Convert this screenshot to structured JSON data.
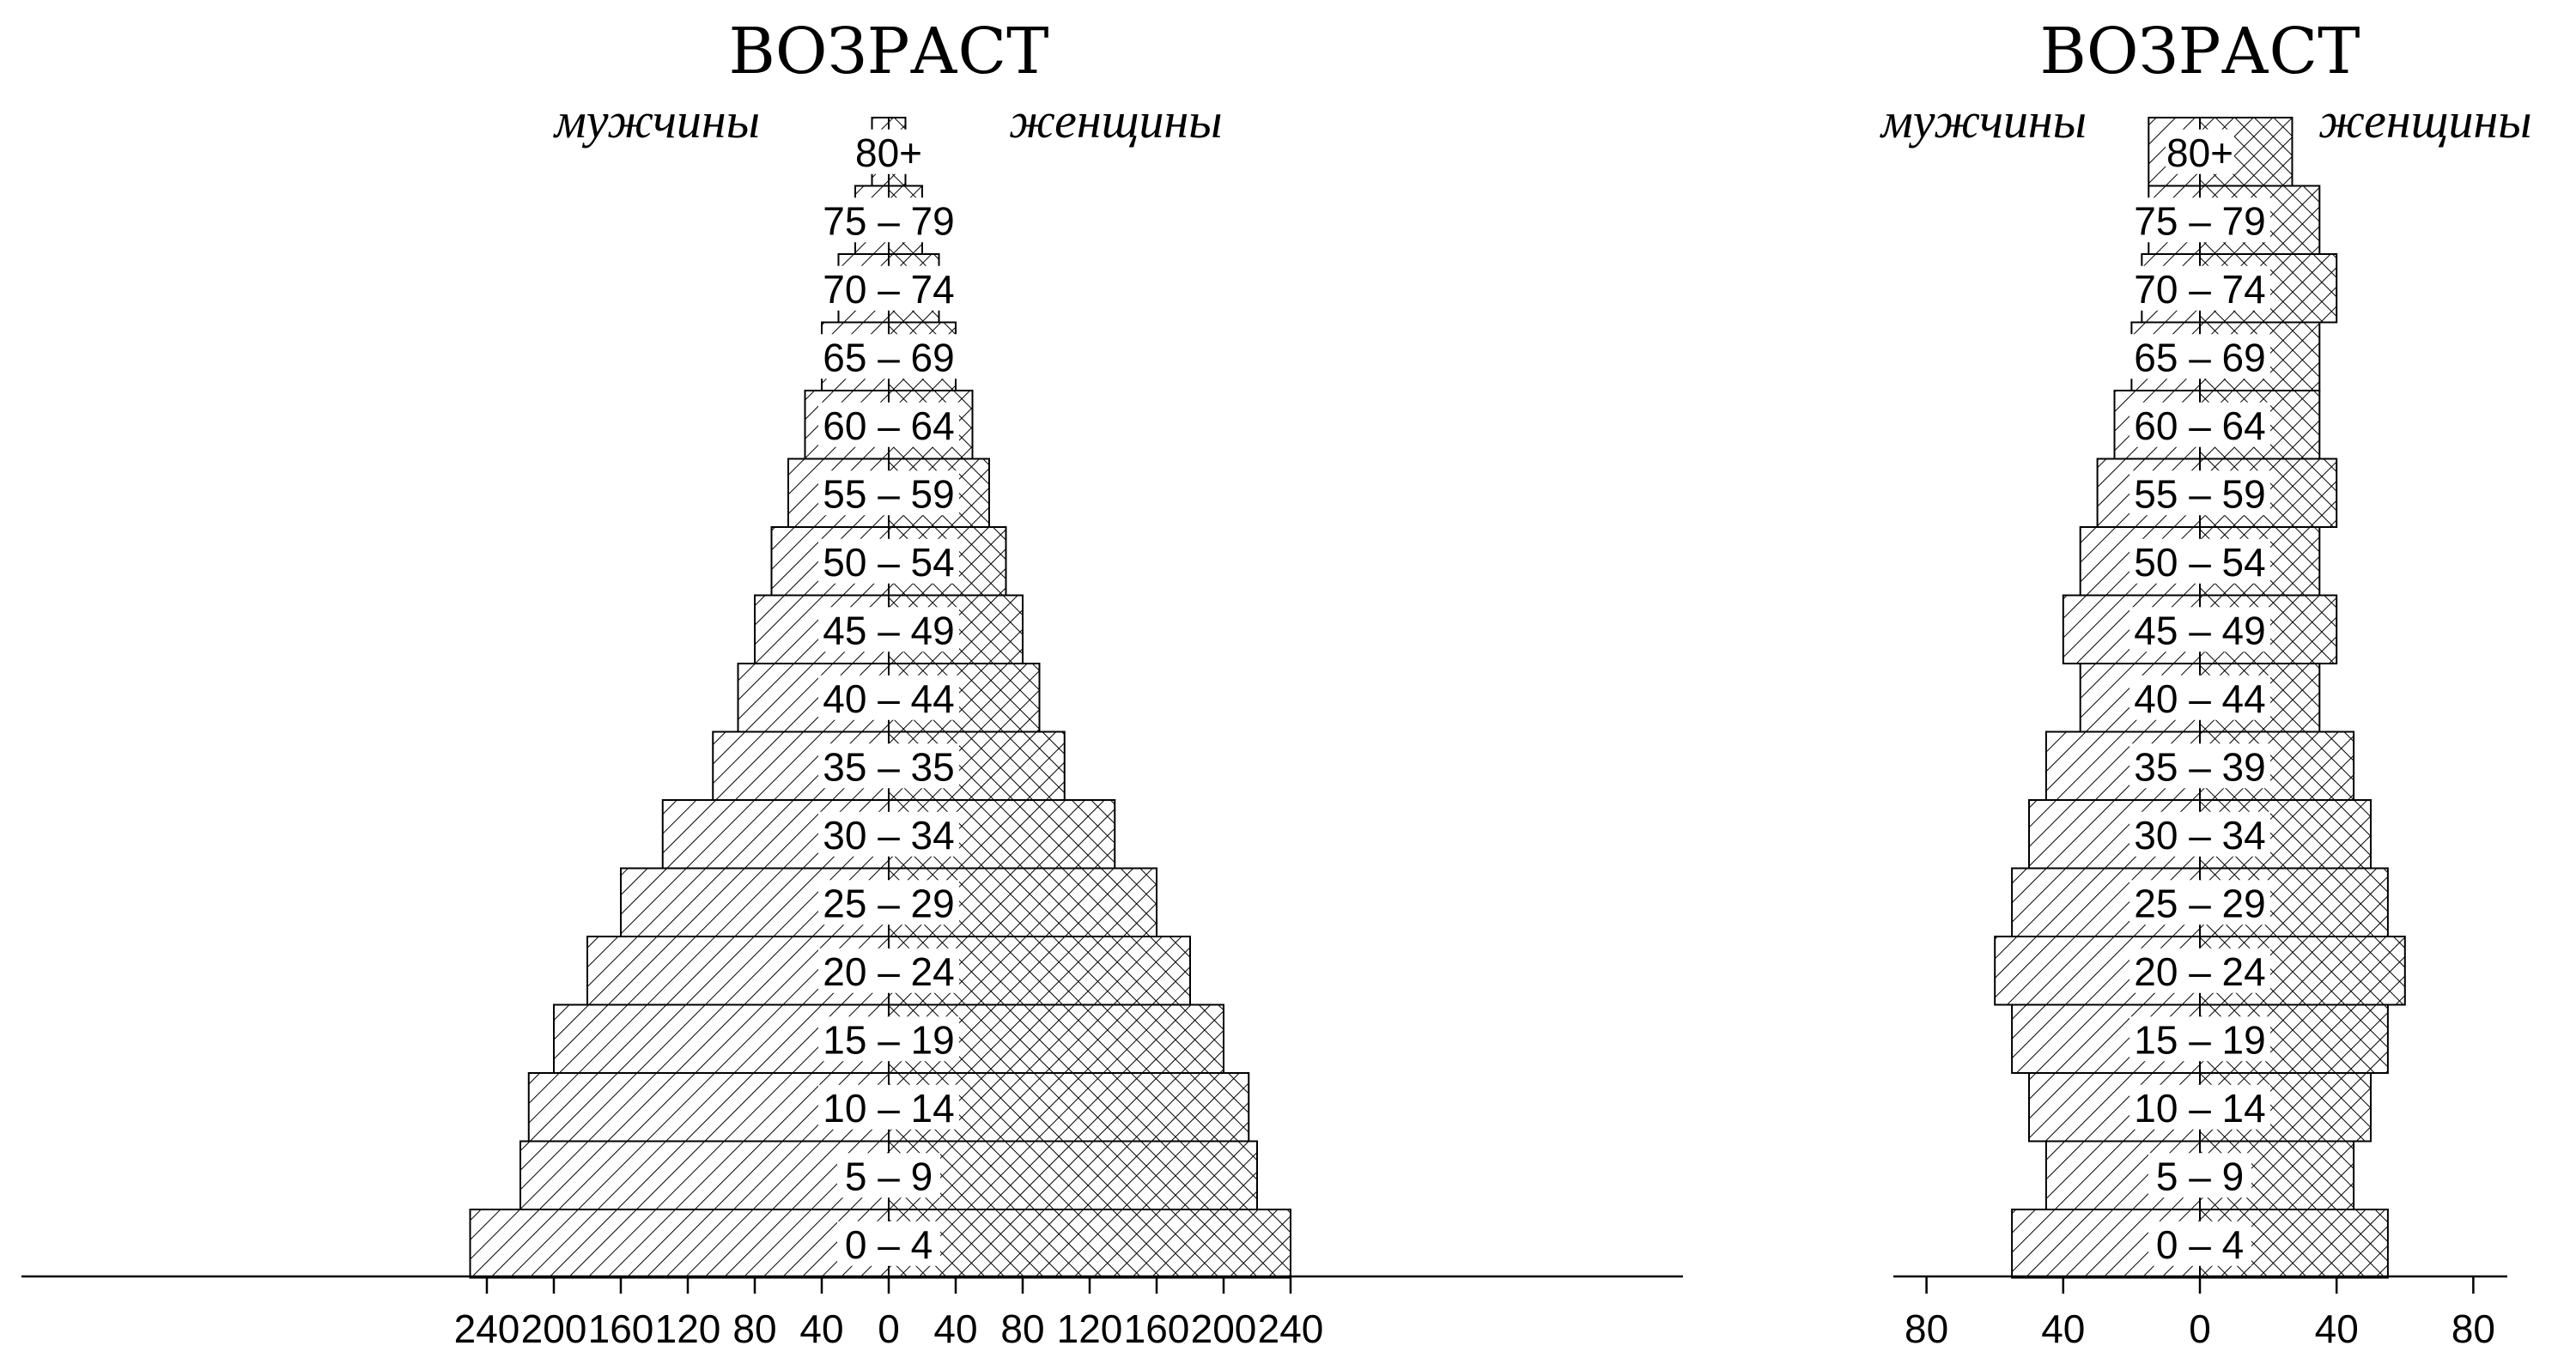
{
  "chart_data": [
    {
      "type": "bar",
      "title": "ВОЗРАСТ",
      "male_label": "мужчины",
      "female_label": "женщины",
      "categories": [
        "0 – 4",
        "5 – 9",
        "10 – 14",
        "15 – 19",
        "20 – 24",
        "25 – 29",
        "30 – 34",
        "35 – 35",
        "40 – 44",
        "45 – 49",
        "50 – 54",
        "55 – 59",
        "60 – 64",
        "65 – 69",
        "70 – 74",
        "75 – 79",
        "80+"
      ],
      "series": [
        {
          "name": "мужчины",
          "values": [
            250,
            220,
            215,
            200,
            180,
            160,
            135,
            105,
            90,
            80,
            70,
            60,
            50,
            40,
            30,
            20,
            10
          ]
        },
        {
          "name": "женщины",
          "values": [
            240,
            220,
            215,
            200,
            180,
            160,
            135,
            105,
            90,
            80,
            70,
            60,
            50,
            40,
            30,
            20,
            10
          ]
        }
      ],
      "xlim": [
        -240,
        240
      ],
      "xticks": [
        "240",
        "200",
        "160",
        "120",
        "80",
        "40",
        "0",
        "40",
        "80",
        "120",
        "160",
        "200",
        "240"
      ],
      "colors": {
        "male_hatch": "diagonal",
        "female_hatch": "crosshatch",
        "stroke": "#000000"
      }
    },
    {
      "type": "bar",
      "title": "ВОЗРАСТ",
      "male_label": "мужчины",
      "female_label": "женщины",
      "categories": [
        "0 – 4",
        "5 – 9",
        "10 – 14",
        "15 – 19",
        "20 – 24",
        "25 – 29",
        "30 – 34",
        "35 – 39",
        "40 – 44",
        "45 – 49",
        "50 – 54",
        "55 – 59",
        "60 – 64",
        "65 – 69",
        "70 – 74",
        "75 – 79",
        "80+"
      ],
      "series": [
        {
          "name": "мужчины",
          "values": [
            55,
            45,
            50,
            55,
            60,
            55,
            50,
            45,
            35,
            40,
            35,
            30,
            25,
            20,
            17,
            15,
            15
          ]
        },
        {
          "name": "женщины",
          "values": [
            55,
            45,
            50,
            55,
            60,
            55,
            50,
            45,
            35,
            40,
            35,
            40,
            35,
            35,
            40,
            35,
            27
          ]
        }
      ],
      "xlim": [
        -80,
        80
      ],
      "xticks": [
        "80",
        "40",
        "0",
        "40",
        "80"
      ],
      "colors": {
        "male_hatch": "diagonal",
        "female_hatch": "crosshatch",
        "stroke": "#000000"
      }
    }
  ]
}
